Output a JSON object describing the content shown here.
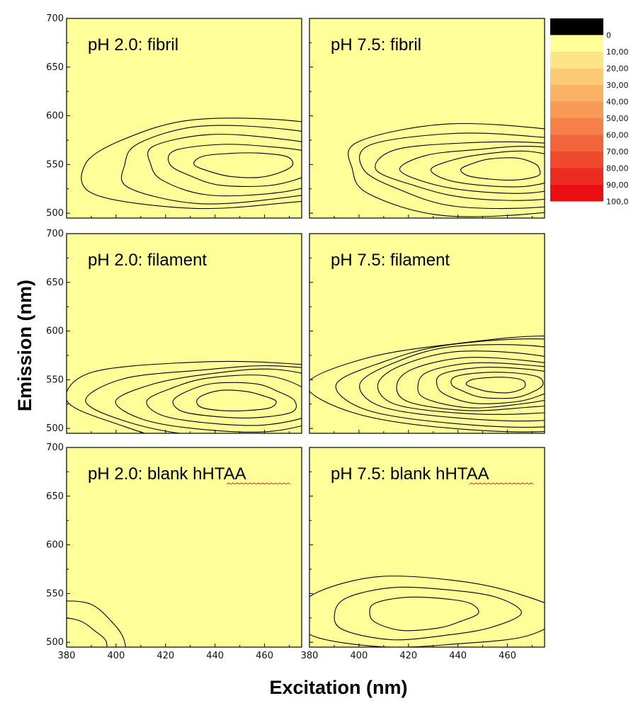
{
  "chart_data": {
    "type": "heatmap",
    "subtype": "filled-contour",
    "xlabel": "Excitation (nm)",
    "ylabel": "Emission (nm)",
    "xlim": [
      380,
      475
    ],
    "ylim": [
      495,
      700
    ],
    "x_ticks": [
      {
        "value": 380,
        "label": "380"
      },
      {
        "value": 400,
        "label": "400"
      },
      {
        "value": 420,
        "label": "420"
      },
      {
        "value": 440,
        "label": "440"
      },
      {
        "value": 460,
        "label": "460"
      }
    ],
    "y_ticks": [
      {
        "value": 500,
        "label": "500"
      },
      {
        "value": 550,
        "label": "550"
      },
      {
        "value": 600,
        "label": "600"
      },
      {
        "value": 650,
        "label": "650"
      },
      {
        "value": 700,
        "label": "700"
      }
    ],
    "colorbar": {
      "levels": [
        {
          "label": "0",
          "color": "#000000"
        },
        {
          "label": "10,00",
          "color": "#ffff99"
        },
        {
          "label": "20,00",
          "color": "#fde488"
        },
        {
          "label": "30,00",
          "color": "#fbca74"
        },
        {
          "label": "40,00",
          "color": "#f9b266"
        },
        {
          "label": "50,00",
          "color": "#f79a58"
        },
        {
          "label": "60,00",
          "color": "#f5804a"
        },
        {
          "label": "70,00",
          "color": "#f2643c"
        },
        {
          "label": "80,00",
          "color": "#ef4a2f"
        },
        {
          "label": "90,00",
          "color": "#ec2c20"
        },
        {
          "label": "100,0",
          "color": "#ea0f12"
        }
      ]
    },
    "panels": [
      {
        "id": "ph2-fibril",
        "label": "pH 2.0: fibril",
        "row": 0,
        "col": 0,
        "peak": {
          "excitation": 452,
          "emission": 550
        },
        "max_level": 5,
        "spread_x": 58,
        "spread_y": 62
      },
      {
        "id": "ph75-fibril",
        "label": "pH 7.5: fibril",
        "row": 0,
        "col": 1,
        "peak": {
          "excitation": 458,
          "emission": 545
        },
        "max_level": 6,
        "spread_x": 60,
        "spread_y": 60
      },
      {
        "id": "ph2-filament",
        "label": "pH 2.0: filament",
        "row": 1,
        "col": 0,
        "peak": {
          "excitation": 448,
          "emission": 528
        },
        "max_level": 6,
        "spread_x": 56,
        "spread_y": 60
      },
      {
        "id": "ph75-filament",
        "label": "pH 7.5: filament",
        "row": 1,
        "col": 1,
        "peak": {
          "excitation": 456,
          "emission": 545
        },
        "max_level": 9,
        "spread_x": 62,
        "spread_y": 64
      },
      {
        "id": "ph2-blank",
        "label": "pH 2.0: blank hHTAA",
        "row": 2,
        "col": 0,
        "peak": {
          "excitation": 380,
          "emission": 500
        },
        "max_level": 2,
        "spread_x": 22,
        "spread_y": 52
      },
      {
        "id": "ph75-blank",
        "label": "pH 7.5: blank hHTAA",
        "row": 2,
        "col": 1,
        "peak": {
          "excitation": 425,
          "emission": 530
        },
        "max_level": 3,
        "spread_x": 44,
        "spread_y": 50
      }
    ]
  }
}
